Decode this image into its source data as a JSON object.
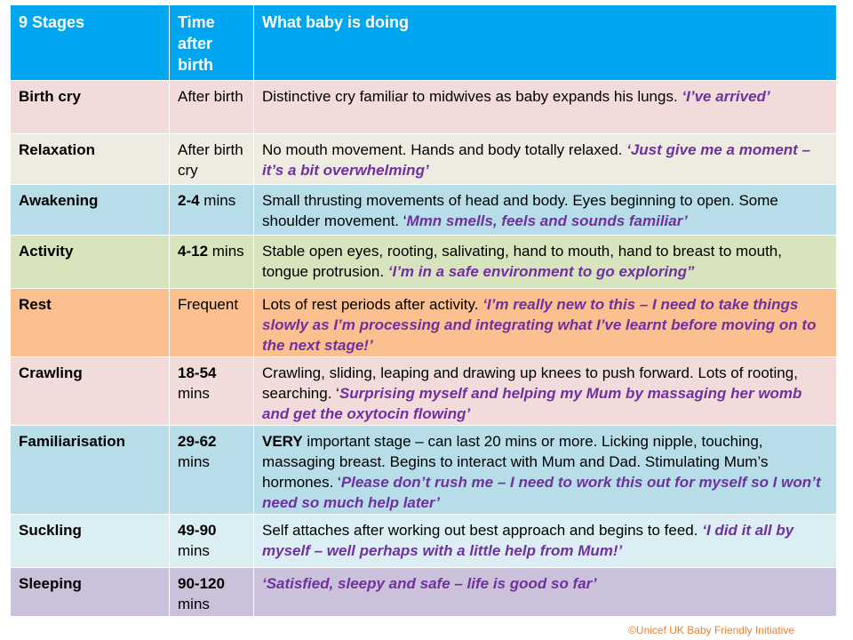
{
  "header": {
    "stage": "9 Stages",
    "time": "Time after birth",
    "desc": "What baby is doing"
  },
  "rows": [
    {
      "stage": "Birth cry",
      "time_bold": "",
      "time_rest": "After birth",
      "desc_lead": "",
      "desc": "Distinctive cry familiar to midwives as baby expands his lungs. ",
      "quote_prefix": "",
      "quote": "‘I’ve arrived’",
      "bg": "#f2dcdb"
    },
    {
      "stage": "Relaxation",
      "time_bold": "",
      "time_rest": "After birth cry",
      "desc_lead": "",
      "desc": "No mouth movement. Hands and body totally relaxed. ",
      "quote_prefix": "",
      "quote": "‘Just give me a moment – it’s a bit overwhelming’",
      "bg": "#eeece1"
    },
    {
      "stage": "Awakening",
      "time_bold": "2-4",
      "time_rest": " mins",
      "desc_lead": "",
      "desc": "Small thrusting movements of head and body. Eyes beginning to open. Some shoulder movement. ",
      "quote_prefix": "‘",
      "quote": "Mmn smells, feels and sounds familiar’",
      "bg": "#b7dee8"
    },
    {
      "stage": "Activity",
      "time_bold": "4-12",
      "time_rest": " mins",
      "desc_lead": "",
      "desc": "Stable open eyes, rooting, salivating, hand to mouth, hand to breast to mouth, tongue protrusion. ",
      "quote_prefix": "",
      "quote": "‘I’m in a safe environment to go exploring”",
      "bg": "#d7e4bd"
    },
    {
      "stage": "Rest",
      "time_bold": "",
      "time_rest": "Frequent",
      "desc_lead": "",
      "desc": "Lots of rest periods after activity. ",
      "quote_prefix": "",
      "quote": "‘I’m really new to this – I need to take things slowly as I’m processing and integrating what I’ve learnt before moving on to the next stage!’",
      "bg": "#fac090"
    },
    {
      "stage": "Crawling",
      "time_bold": "18-54",
      "time_rest": " mins",
      "desc_lead": "",
      "desc": "Crawling, sliding, leaping and drawing up knees to push forward. Lots of rooting, searching. ",
      "quote_prefix": "‘",
      "quote": "Surprising myself and helping my Mum by massaging her womb and get the oxytocin flowing’",
      "bg": "#f2dcdb"
    },
    {
      "stage": "Familiarisation",
      "time_bold": "29-62",
      "time_rest": " mins",
      "desc_lead": "VERY",
      "desc": " important stage – can last 20 mins or more. Licking nipple, touching, massaging breast. Begins to interact with Mum and Dad. Stimulating Mum’s hormones. ",
      "quote_prefix": "‘",
      "quote": "Please don’t rush me – I need to work this out for myself so I won’t need so much help later’",
      "bg": "#b7dee8"
    },
    {
      "stage": "Suckling",
      "time_bold": "49-90",
      "time_rest": " mins",
      "desc_lead": "",
      "desc": "Self attaches after working out best approach and begins to feed. ",
      "quote_prefix": "",
      "quote": "‘I did it all by myself – well perhaps with a little help from Mum!’",
      "bg": "#dbeef4"
    },
    {
      "stage": "Sleeping",
      "time_bold": "90-120",
      "time_rest": " mins",
      "desc_lead": "",
      "desc": "",
      "quote_prefix": "",
      "quote": "‘Satisfied, sleepy and safe – life is good so far’",
      "bg": "#ccc1da"
    }
  ],
  "credit": "©Unicef UK Baby Friendly Initiative"
}
